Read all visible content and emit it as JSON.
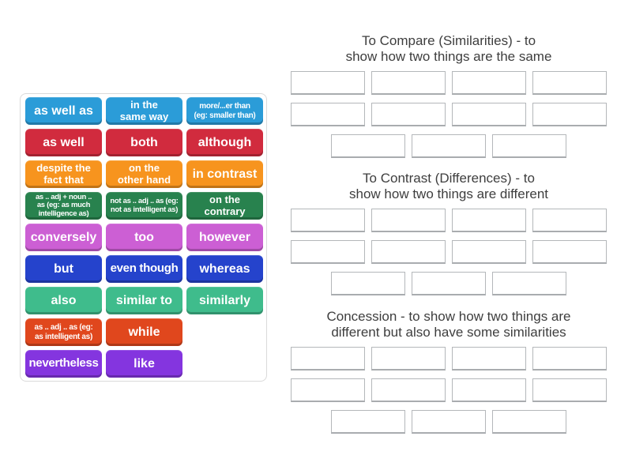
{
  "colors": {
    "slot_border": "#b4b7ba",
    "slot_border_bottom": "#a9acaf",
    "title_text": "#3e3e3e",
    "tile_text": "#ffffff"
  },
  "word_bank": {
    "tiles": [
      {
        "text": "as well as",
        "color": "#2b9cd8"
      },
      {
        "text": "in the\nsame way",
        "color": "#2b9cd8"
      },
      {
        "text": "more/...er than\n(eg: smaller than)",
        "color": "#2b9cd8"
      },
      {
        "text": "as well",
        "color": "#d12b3e"
      },
      {
        "text": "both",
        "color": "#d12b3e"
      },
      {
        "text": "although",
        "color": "#d12b3e"
      },
      {
        "text": "despite the\nfact that",
        "color": "#f7941e"
      },
      {
        "text": "on the\nother hand",
        "color": "#f7941e"
      },
      {
        "text": "in contrast",
        "color": "#f7941e"
      },
      {
        "text": "as .. adj + noun ..\nas (eg: as much\nintelligence as)",
        "color": "#28824e"
      },
      {
        "text": "not as .. adj .. as (eg:\nnot as intelligent as)",
        "color": "#28824e"
      },
      {
        "text": "on the\ncontrary",
        "color": "#28824e"
      },
      {
        "text": "conversely",
        "color": "#cc5fd4"
      },
      {
        "text": "too",
        "color": "#cc5fd4"
      },
      {
        "text": "however",
        "color": "#cc5fd4"
      },
      {
        "text": "but",
        "color": "#2543cc"
      },
      {
        "text": "even though",
        "color": "#2543cc"
      },
      {
        "text": "whereas",
        "color": "#2543cc"
      },
      {
        "text": "also",
        "color": "#3fbc8c"
      },
      {
        "text": "similar to",
        "color": "#3fbc8c"
      },
      {
        "text": "similarly",
        "color": "#3fbc8c"
      },
      {
        "text": "as .. adj .. as (eg:\nas intelligent as)",
        "color": "#e0471d"
      },
      {
        "text": "while",
        "color": "#e0471d"
      },
      {
        "text": "nevertheless",
        "color": "#8435df"
      },
      {
        "text": "like",
        "color": "#8435df"
      }
    ]
  },
  "groups": [
    {
      "title": "To Compare (Similarities) - to\nshow how two things are the same",
      "slot_rows": [
        4,
        4,
        3
      ]
    },
    {
      "title": "To Contrast (Differences) - to\nshow how two things are different",
      "slot_rows": [
        4,
        4,
        3
      ]
    },
    {
      "title": "Concession - to show how two things are\ndifferent but also have some similarities",
      "slot_rows": [
        4,
        4,
        3
      ]
    }
  ]
}
